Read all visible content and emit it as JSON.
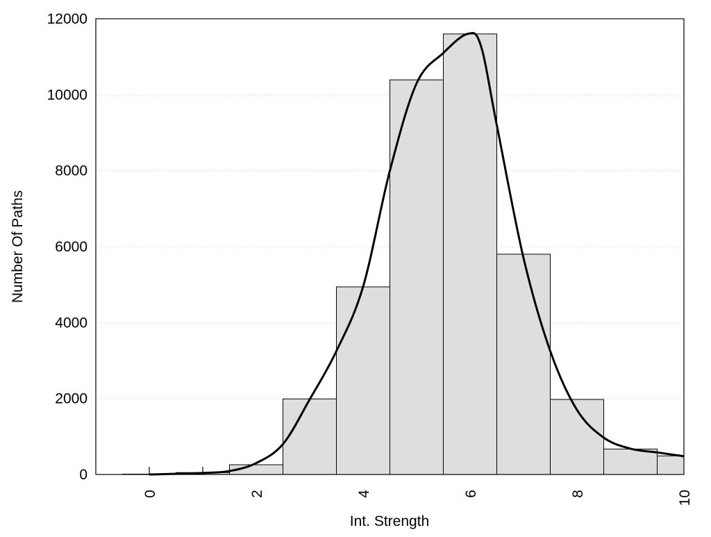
{
  "chart_data": {
    "type": "bar",
    "title": "",
    "xlabel": "Int. Strength",
    "ylabel": "Number Of Paths",
    "xlim": [
      -1,
      10
    ],
    "ylim": [
      0,
      12000
    ],
    "grid": "horizontal dotted",
    "x_ticks": [
      0,
      2,
      4,
      6,
      8,
      10
    ],
    "y_ticks": [
      0,
      2000,
      4000,
      6000,
      8000,
      10000,
      12000
    ],
    "bars": {
      "x": [
        0,
        1,
        2,
        3,
        4,
        5,
        6,
        7,
        8,
        9,
        10
      ],
      "values": [
        10,
        50,
        256,
        1990,
        4940,
        10390,
        11600,
        5800,
        1975,
        670,
        490
      ],
      "color": "#dedede"
    },
    "curve": {
      "x": [
        0,
        1,
        1.5,
        2,
        2.5,
        3,
        3.5,
        4,
        4.5,
        5,
        5.5,
        5.95,
        6.2,
        6.5,
        7,
        7.5,
        8,
        8.5,
        9,
        9.5,
        10
      ],
      "y": [
        0,
        40,
        90,
        300,
        800,
        1975,
        3250,
        4950,
        8000,
        10300,
        11100,
        11600,
        11300,
        9200,
        5700,
        3250,
        1700,
        970,
        680,
        580,
        480
      ],
      "color": "#000000"
    }
  }
}
